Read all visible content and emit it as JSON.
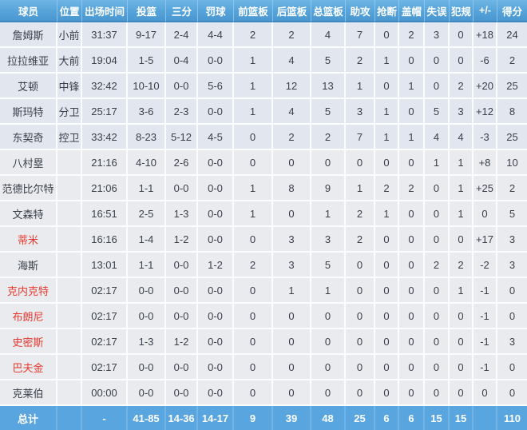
{
  "table": {
    "headers": [
      "球员",
      "位置",
      "出场时间",
      "投篮",
      "三分",
      "罚球",
      "前篮板",
      "后篮板",
      "总篮板",
      "助攻",
      "抢断",
      "盖帽",
      "失误",
      "犯规",
      "+/-",
      "得分"
    ],
    "rows": [
      {
        "name": "詹姆斯",
        "red": false,
        "starter": true,
        "cells": [
          "小前",
          "31:37",
          "9-17",
          "2-4",
          "4-4",
          "2",
          "2",
          "4",
          "7",
          "0",
          "2",
          "3",
          "0",
          "+18",
          "24"
        ]
      },
      {
        "name": "拉拉维亚",
        "red": false,
        "starter": true,
        "cells": [
          "大前",
          "19:04",
          "1-5",
          "0-4",
          "0-0",
          "1",
          "4",
          "5",
          "2",
          "1",
          "0",
          "0",
          "0",
          "-6",
          "2"
        ]
      },
      {
        "name": "艾顿",
        "red": false,
        "starter": true,
        "cells": [
          "中锋",
          "32:42",
          "10-10",
          "0-0",
          "5-6",
          "1",
          "12",
          "13",
          "1",
          "0",
          "1",
          "0",
          "2",
          "+20",
          "25"
        ]
      },
      {
        "name": "斯玛特",
        "red": false,
        "starter": true,
        "cells": [
          "分卫",
          "25:17",
          "3-6",
          "2-3",
          "0-0",
          "1",
          "4",
          "5",
          "3",
          "1",
          "0",
          "5",
          "3",
          "+12",
          "8"
        ]
      },
      {
        "name": "东契奇",
        "red": false,
        "starter": true,
        "cells": [
          "控卫",
          "33:42",
          "8-23",
          "5-12",
          "4-5",
          "0",
          "2",
          "2",
          "7",
          "1",
          "1",
          "4",
          "4",
          "-3",
          "25"
        ]
      },
      {
        "name": "八村塁",
        "red": false,
        "starter": false,
        "cells": [
          "",
          "21:16",
          "4-10",
          "2-6",
          "0-0",
          "0",
          "0",
          "0",
          "0",
          "0",
          "0",
          "1",
          "1",
          "+8",
          "10"
        ]
      },
      {
        "name": "范德比尔特",
        "red": false,
        "starter": false,
        "cells": [
          "",
          "21:06",
          "1-1",
          "0-0",
          "0-0",
          "1",
          "8",
          "9",
          "1",
          "2",
          "2",
          "0",
          "1",
          "+25",
          "2"
        ]
      },
      {
        "name": "文森特",
        "red": false,
        "starter": false,
        "cells": [
          "",
          "16:51",
          "2-5",
          "1-3",
          "0-0",
          "1",
          "0",
          "1",
          "2",
          "1",
          "0",
          "0",
          "1",
          "0",
          "5"
        ]
      },
      {
        "name": "蒂米",
        "red": true,
        "starter": false,
        "cells": [
          "",
          "16:16",
          "1-4",
          "1-2",
          "0-0",
          "0",
          "3",
          "3",
          "2",
          "0",
          "0",
          "0",
          "0",
          "+17",
          "3"
        ]
      },
      {
        "name": "海斯",
        "red": false,
        "starter": false,
        "cells": [
          "",
          "13:01",
          "1-1",
          "0-0",
          "1-2",
          "2",
          "3",
          "5",
          "0",
          "0",
          "0",
          "2",
          "2",
          "-2",
          "3"
        ]
      },
      {
        "name": "克内克特",
        "red": true,
        "starter": false,
        "cells": [
          "",
          "02:17",
          "0-0",
          "0-0",
          "0-0",
          "0",
          "1",
          "1",
          "0",
          "0",
          "0",
          "0",
          "1",
          "-1",
          "0"
        ]
      },
      {
        "name": "布朗尼",
        "red": true,
        "starter": false,
        "cells": [
          "",
          "02:17",
          "0-0",
          "0-0",
          "0-0",
          "0",
          "0",
          "0",
          "0",
          "0",
          "0",
          "0",
          "0",
          "-1",
          "0"
        ]
      },
      {
        "name": "史密斯",
        "red": true,
        "starter": false,
        "cells": [
          "",
          "02:17",
          "1-3",
          "1-2",
          "0-0",
          "0",
          "0",
          "0",
          "0",
          "0",
          "0",
          "0",
          "0",
          "-1",
          "3"
        ]
      },
      {
        "name": "巴夫金",
        "red": true,
        "starter": false,
        "cells": [
          "",
          "02:17",
          "0-0",
          "0-0",
          "0-0",
          "0",
          "0",
          "0",
          "0",
          "0",
          "0",
          "0",
          "0",
          "-1",
          "0"
        ]
      },
      {
        "name": "克莱伯",
        "red": false,
        "starter": false,
        "cells": [
          "",
          "00:00",
          "0-0",
          "0-0",
          "0-0",
          "0",
          "0",
          "0",
          "0",
          "0",
          "0",
          "0",
          "0",
          "0",
          "0"
        ]
      }
    ],
    "total": {
      "label": "总计",
      "cells": [
        "",
        "-",
        "41-85",
        "14-36",
        "14-17",
        "9",
        "39",
        "48",
        "25",
        "6",
        "6",
        "15",
        "15",
        "",
        "110"
      ]
    }
  },
  "colors": {
    "header_blue": "#55a3d9",
    "header_border": "#3d88c0",
    "total_row_blue": "#58a5e0",
    "starter_row_bg": "#e1e6ef",
    "bench_row_bg": "#e9ebee",
    "text_dark": "#3a3f49",
    "text_red": "#e5392e",
    "text_white": "#ffffff"
  }
}
